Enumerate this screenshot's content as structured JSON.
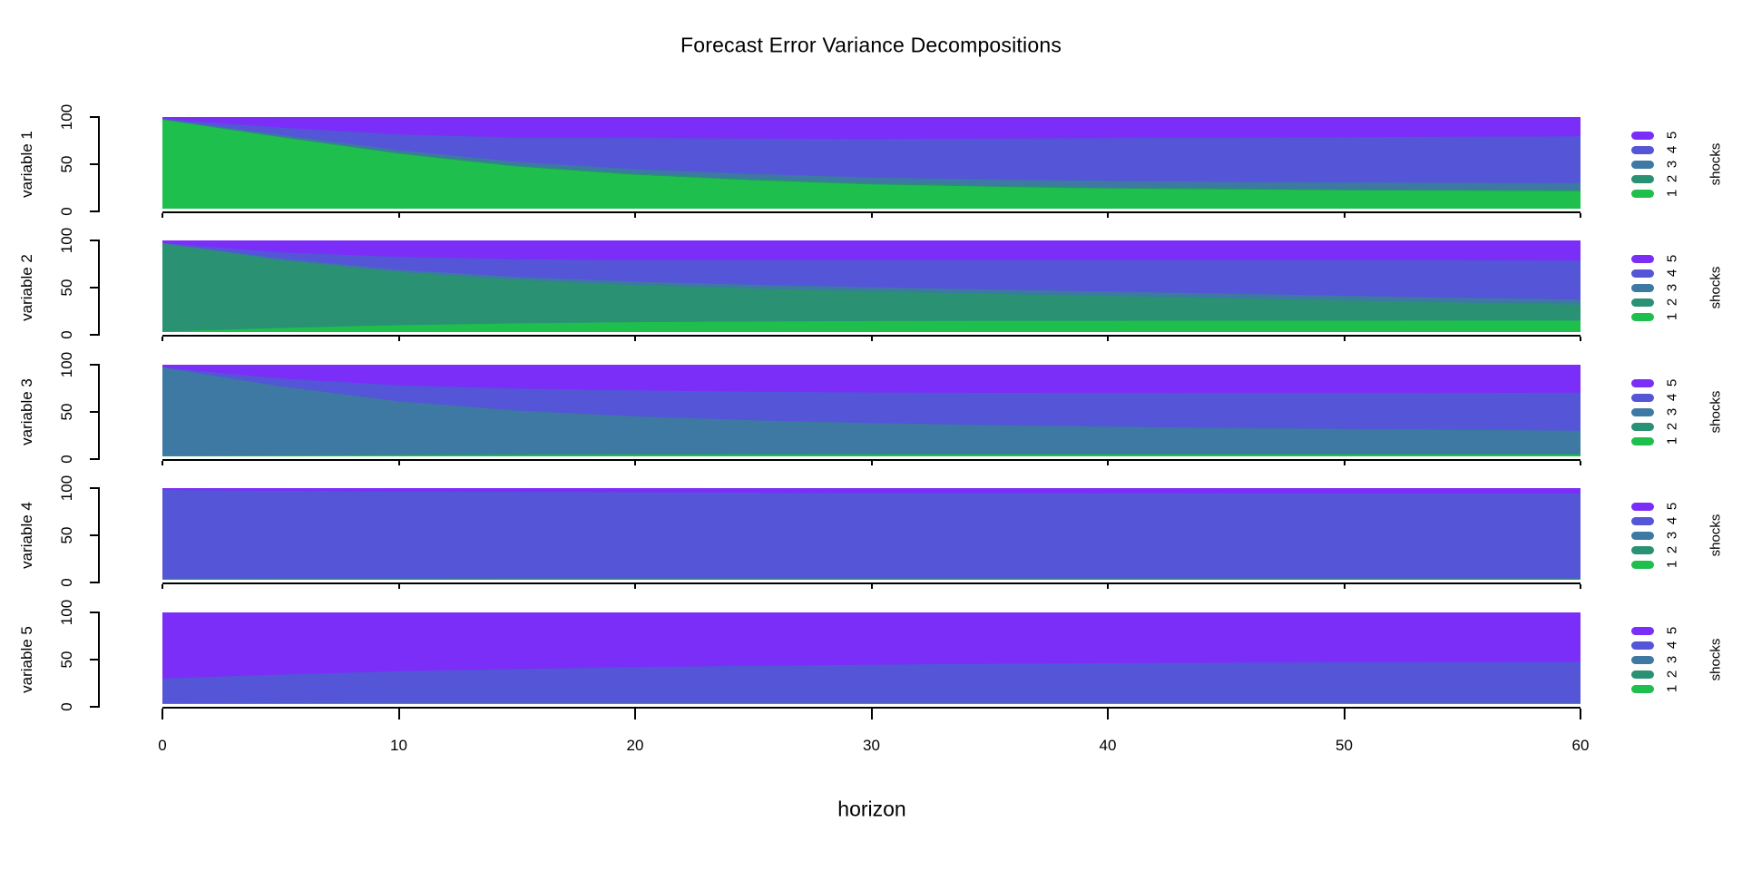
{
  "title": "Forecast Error Variance Decompositions",
  "xlabel": "horizon",
  "axes": {
    "x_ticks": [
      0,
      10,
      20,
      30,
      40,
      50,
      60
    ],
    "x_tick_labels": [
      "0",
      "10",
      "20",
      "30",
      "40",
      "50",
      "60"
    ],
    "x_range": [
      0,
      60
    ],
    "y_ticks": [
      0,
      50,
      100
    ],
    "y_tick_labels": [
      "0",
      "50",
      "100"
    ],
    "y_range": [
      0,
      100
    ]
  },
  "legend": {
    "title": "shocks",
    "items": [
      {
        "shock": "1",
        "color": "#1FBF4D"
      },
      {
        "shock": "2",
        "color": "#2A9173"
      },
      {
        "shock": "3",
        "color": "#3D79A3"
      },
      {
        "shock": "4",
        "color": "#5455D7"
      },
      {
        "shock": "5",
        "color": "#7B2EF8"
      }
    ]
  },
  "chart_data": [
    {
      "type": "area",
      "variable": "variable 1",
      "x": [
        0,
        5,
        10,
        15,
        20,
        25,
        30,
        35,
        40,
        45,
        50,
        55,
        60
      ],
      "stacked": true,
      "ylim": [
        0,
        100
      ],
      "series": [
        {
          "name": "shock 1",
          "values": [
            97,
            78,
            60,
            46,
            37,
            31,
            26.5,
            24,
            22,
            21,
            20,
            19.5,
            19
          ]
        },
        {
          "name": "shock 2",
          "values": [
            0.4,
            0.8,
            1,
            1.2,
            1.3,
            1.4,
            1.5,
            1.5,
            1.5,
            1.5,
            1.5,
            1.5,
            1.5
          ]
        },
        {
          "name": "shock 3",
          "values": [
            0.6,
            1.7,
            3,
            4,
            4.8,
            5.5,
            6,
            6.4,
            6.8,
            7,
            7.2,
            7.4,
            7.5
          ]
        },
        {
          "name": "shock 4",
          "values": [
            0,
            8,
            17,
            26.3,
            34,
            38.6,
            42,
            44.6,
            46.7,
            48,
            49.3,
            50.1,
            51
          ]
        },
        {
          "name": "shock 5",
          "values": [
            2,
            11.5,
            19,
            22.5,
            22.9,
            23.5,
            24,
            23.5,
            23,
            22.5,
            22,
            21.5,
            21
          ]
        }
      ]
    },
    {
      "type": "area",
      "variable": "variable 2",
      "x": [
        0,
        5,
        10,
        15,
        20,
        25,
        30,
        35,
        40,
        45,
        50,
        55,
        60
      ],
      "stacked": true,
      "ylim": [
        0,
        100
      ],
      "series": [
        {
          "name": "shock 1",
          "values": [
            0.5,
            4.5,
            7.5,
            9.5,
            10.8,
            11.5,
            12,
            12.2,
            12.3,
            12.4,
            12.4,
            12.5,
            12.5
          ]
        },
        {
          "name": "shock 2",
          "values": [
            96,
            74,
            58,
            47.5,
            40.5,
            36,
            32.5,
            29.5,
            27,
            24.5,
            22,
            19.5,
            17.5
          ]
        },
        {
          "name": "shock 3",
          "values": [
            0.5,
            1.5,
            2.5,
            3.2,
            3.8,
            4.2,
            4.5,
            4.8,
            5,
            5.2,
            5.3,
            5.4,
            5.5
          ]
        },
        {
          "name": "shock 4",
          "values": [
            0,
            7,
            14,
            19.3,
            23.4,
            26.8,
            29.5,
            32,
            34.2,
            36.4,
            38.8,
            41.1,
            42.5
          ]
        },
        {
          "name": "shock 5",
          "values": [
            3,
            13,
            18,
            20.5,
            21.5,
            21.5,
            21.5,
            21.5,
            21.5,
            21.5,
            21.5,
            21.5,
            22
          ]
        }
      ]
    },
    {
      "type": "area",
      "variable": "variable 3",
      "x": [
        0,
        5,
        10,
        15,
        20,
        25,
        30,
        35,
        40,
        45,
        50,
        55,
        60
      ],
      "stacked": true,
      "ylim": [
        0,
        100
      ],
      "series": [
        {
          "name": "shock 1",
          "values": [
            0.2,
            0.8,
            1.2,
            1.5,
            1.7,
            1.8,
            1.9,
            2,
            2,
            2,
            2,
            2,
            2
          ]
        },
        {
          "name": "shock 2",
          "values": [
            0.3,
            0.7,
            0.9,
            1,
            1,
            1,
            1,
            1,
            1,
            1,
            1,
            1,
            1
          ]
        },
        {
          "name": "shock 3",
          "values": [
            96.5,
            75,
            58,
            47.5,
            41,
            36.5,
            33.5,
            31,
            29.5,
            28,
            27,
            26,
            25
          ]
        },
        {
          "name": "shock 4",
          "values": [
            0,
            8.5,
            17.5,
            24,
            28.3,
            31.2,
            33.4,
            35.3,
            36.7,
            38,
            39,
            40.2,
            41.5
          ]
        },
        {
          "name": "shock 5",
          "values": [
            3,
            15,
            22.4,
            26,
            28,
            29.5,
            30.2,
            30.7,
            30.8,
            31,
            31,
            30.8,
            30.5
          ]
        }
      ]
    },
    {
      "type": "area",
      "variable": "variable 4",
      "x": [
        0,
        5,
        10,
        15,
        20,
        25,
        30,
        35,
        40,
        45,
        50,
        55,
        60
      ],
      "stacked": true,
      "ylim": [
        0,
        100
      ],
      "series": [
        {
          "name": "shock 1",
          "values": [
            0.3,
            0.3,
            0.3,
            0.3,
            0.3,
            0.3,
            0.3,
            0.3,
            0.3,
            0.3,
            0.3,
            0.3,
            0.3
          ]
        },
        {
          "name": "shock 2",
          "values": [
            0.7,
            0.8,
            0.9,
            1,
            1,
            1,
            1,
            1,
            1,
            1,
            1,
            1,
            1
          ]
        },
        {
          "name": "shock 3",
          "values": [
            0.2,
            0.2,
            0.2,
            0.2,
            0.2,
            0.2,
            0.2,
            0.2,
            0.2,
            0.2,
            0.2,
            0.2,
            0.2
          ]
        },
        {
          "name": "shock 4",
          "values": [
            96.8,
            95.7,
            95.1,
            94.4,
            93.9,
            93.5,
            93.2,
            93,
            92.8,
            92.7,
            92.6,
            92.5,
            92.5
          ]
        },
        {
          "name": "shock 5",
          "values": [
            2,
            3,
            3.5,
            4.1,
            4.6,
            5,
            5.3,
            5.5,
            5.7,
            5.8,
            5.9,
            6,
            6
          ]
        }
      ]
    },
    {
      "type": "area",
      "variable": "variable 5",
      "x": [
        0,
        5,
        10,
        15,
        20,
        25,
        30,
        35,
        40,
        45,
        50,
        55,
        60
      ],
      "stacked": true,
      "ylim": [
        0,
        100
      ],
      "series": [
        {
          "name": "shock 1",
          "values": [
            0.5,
            0.7,
            0.8,
            0.8,
            0.8,
            0.8,
            0.8,
            0.8,
            0.8,
            0.8,
            0.8,
            0.8,
            0.8
          ]
        },
        {
          "name": "shock 2",
          "values": [
            0.3,
            0.3,
            0.3,
            0.3,
            0.3,
            0.3,
            0.3,
            0.3,
            0.3,
            0.3,
            0.3,
            0.3,
            0.3
          ]
        },
        {
          "name": "shock 3",
          "values": [
            0.2,
            0.2,
            0.2,
            0.2,
            0.2,
            0.2,
            0.2,
            0.2,
            0.2,
            0.2,
            0.2,
            0.2,
            0.2
          ]
        },
        {
          "name": "shock 4",
          "values": [
            27,
            31,
            34.5,
            37,
            39,
            40.5,
            41.7,
            42.6,
            43.3,
            43.8,
            44.2,
            44.5,
            44.7
          ]
        },
        {
          "name": "shock 5",
          "values": [
            72,
            67.8,
            64.2,
            61.7,
            59.7,
            58.2,
            57,
            56.1,
            55.4,
            54.9,
            54.5,
            54.2,
            54
          ]
        }
      ]
    }
  ]
}
